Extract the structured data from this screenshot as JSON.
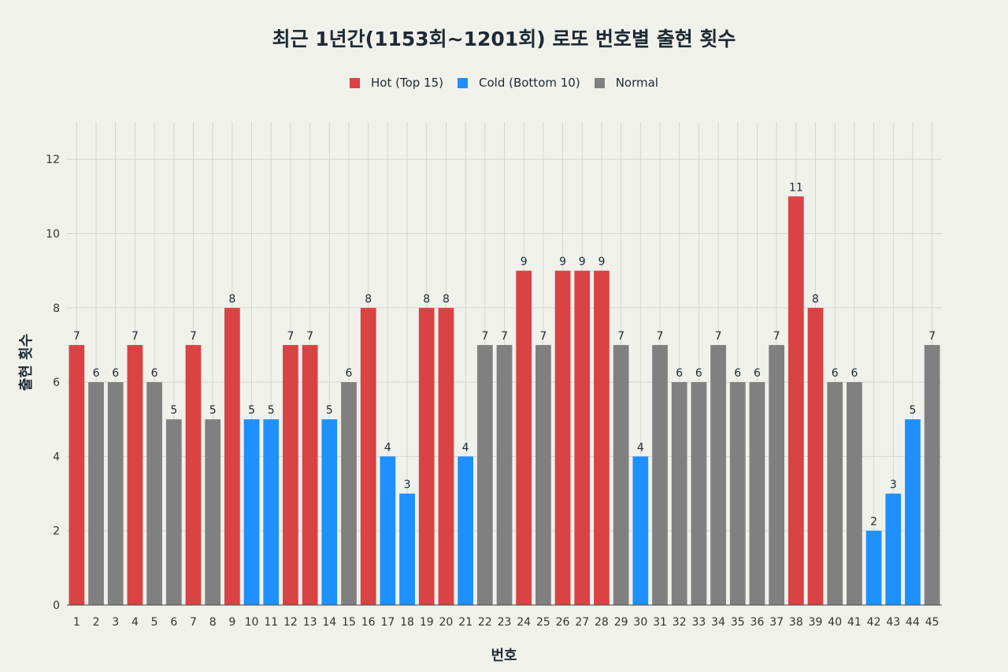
{
  "chart_data": {
    "type": "bar",
    "title": "최근 1년간(1153회~1201회) 로또 번호별 출현 횟수",
    "xlabel": "번호",
    "ylabel": "출현 횟수",
    "ylim": [
      0,
      13
    ],
    "yticks": [
      0,
      2,
      4,
      6,
      8,
      10,
      12
    ],
    "grid": true,
    "legend_placement": "top-center",
    "legend": [
      {
        "key": "hot",
        "label": "Hot (Top 15)",
        "color": "#d94343"
      },
      {
        "key": "cold",
        "label": "Cold (Bottom 10)",
        "color": "#1e90ff"
      },
      {
        "key": "normal",
        "label": "Normal",
        "color": "#808080"
      }
    ],
    "categories": [
      "1",
      "2",
      "3",
      "4",
      "5",
      "6",
      "7",
      "8",
      "9",
      "10",
      "11",
      "12",
      "13",
      "14",
      "15",
      "16",
      "17",
      "18",
      "19",
      "20",
      "21",
      "22",
      "23",
      "24",
      "25",
      "26",
      "27",
      "28",
      "29",
      "30",
      "31",
      "32",
      "33",
      "34",
      "35",
      "36",
      "37",
      "38",
      "39",
      "40",
      "41",
      "42",
      "43",
      "44",
      "45"
    ],
    "values": [
      7,
      6,
      6,
      7,
      6,
      5,
      7,
      5,
      8,
      5,
      5,
      7,
      7,
      5,
      6,
      8,
      4,
      3,
      8,
      8,
      4,
      7,
      7,
      9,
      7,
      9,
      9,
      9,
      7,
      4,
      7,
      6,
      6,
      7,
      6,
      6,
      7,
      11,
      8,
      6,
      6,
      2,
      3,
      5,
      7
    ],
    "groups": [
      "hot",
      "normal",
      "normal",
      "hot",
      "normal",
      "normal",
      "hot",
      "normal",
      "hot",
      "cold",
      "cold",
      "hot",
      "hot",
      "cold",
      "normal",
      "hot",
      "cold",
      "cold",
      "hot",
      "hot",
      "cold",
      "normal",
      "normal",
      "hot",
      "normal",
      "hot",
      "hot",
      "hot",
      "normal",
      "cold",
      "normal",
      "normal",
      "normal",
      "normal",
      "normal",
      "normal",
      "normal",
      "hot",
      "hot",
      "normal",
      "normal",
      "cold",
      "cold",
      "cold",
      "normal"
    ]
  }
}
